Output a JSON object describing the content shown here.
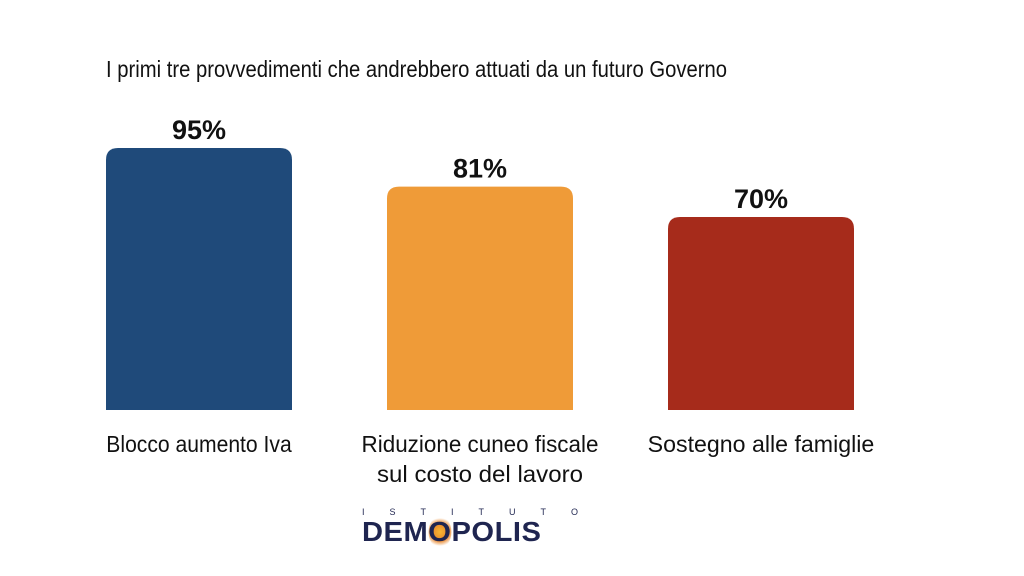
{
  "chart_data": {
    "type": "bar",
    "title": "I primi tre provvedimenti che andrebbero attuati da un futuro Governo",
    "categories": [
      "Blocco aumento Iva",
      "Riduzione cuneo fiscale sul costo del lavoro",
      "Sostegno alle famiglie"
    ],
    "category_lines": [
      [
        "Blocco aumento Iva"
      ],
      [
        "Riduzione cuneo fiscale",
        "sul costo del lavoro"
      ],
      [
        "Sostegno alle famiglie"
      ]
    ],
    "values": [
      95,
      81,
      70
    ],
    "value_labels": [
      "95%",
      "81%",
      "70%"
    ],
    "colors": [
      "#1f4a7a",
      "#ef9b38",
      "#a62b1b"
    ],
    "ylim": [
      0,
      100
    ],
    "grid": false,
    "legend": "none"
  },
  "logo": {
    "subtitle_letters": [
      "I",
      "S",
      "T",
      "I",
      "T",
      "U",
      "T",
      "O"
    ],
    "name_before": "DEM",
    "name_o": "O",
    "name_after": "POLIS"
  }
}
